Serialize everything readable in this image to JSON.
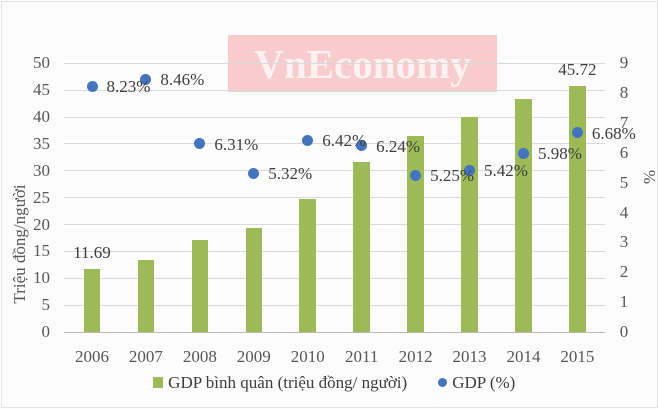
{
  "watermark": {
    "text": "VnEconomy"
  },
  "chart_data": {
    "type": "bar",
    "subtype": "combo-bar-scatter",
    "title": "",
    "categories": [
      "2006",
      "2007",
      "2008",
      "2009",
      "2010",
      "2011",
      "2012",
      "2013",
      "2014",
      "2015"
    ],
    "series": [
      {
        "name": "GDP bình quân (triệu đồng/ người)",
        "type": "bar",
        "axis": "left",
        "color": "#9cba57",
        "values": [
          11.69,
          13.44,
          17.14,
          19.28,
          24.82,
          31.66,
          36.54,
          39.93,
          43.4,
          45.72
        ],
        "data_labels": [
          "11.69",
          "",
          "",
          "",
          "",
          "",
          "",
          "",
          "",
          "45.72"
        ]
      },
      {
        "name": "GDP (%)",
        "type": "scatter",
        "axis": "right",
        "color": "#4374bd",
        "values": [
          8.23,
          8.46,
          6.31,
          5.32,
          6.42,
          6.24,
          5.25,
          5.42,
          5.98,
          6.68
        ],
        "data_labels": [
          "8.23%",
          "8.46%",
          "6.31%",
          "5.32%",
          "6.42%",
          "6.24%",
          "5.25%",
          "5.42%",
          "5.98%",
          "6.68%"
        ]
      }
    ],
    "left_axis": {
      "title": "Triệu đồng/người",
      "min": 0,
      "max": 50,
      "step": 5,
      "ticks": [
        "0",
        "5",
        "10",
        "15",
        "20",
        "25",
        "30",
        "35",
        "40",
        "45",
        "50"
      ]
    },
    "right_axis": {
      "title": "%",
      "min": 0,
      "max": 9,
      "step": 1,
      "ticks": [
        "0",
        "1",
        "2",
        "3",
        "4",
        "5",
        "6",
        "7",
        "8",
        "9"
      ]
    },
    "grid": true,
    "legend_position": "bottom"
  },
  "legend": {
    "items": [
      {
        "label": "GDP bình quân (triệu đồng/ người)",
        "marker": "square",
        "color": "#9cba57"
      },
      {
        "label": "GDP (%)",
        "marker": "circle",
        "color": "#4374bd"
      }
    ]
  },
  "colors": {
    "bar": "#9cba57",
    "point": "#4374bd",
    "gridline": "#d9d9d9",
    "axis_line": "#b9b9b9",
    "tick_text": "#575757",
    "label_text": "#3d3d3d",
    "watermark_bg": "rgba(235,60,60,0.25)",
    "watermark_text": "rgba(255,255,255,0.72)"
  }
}
